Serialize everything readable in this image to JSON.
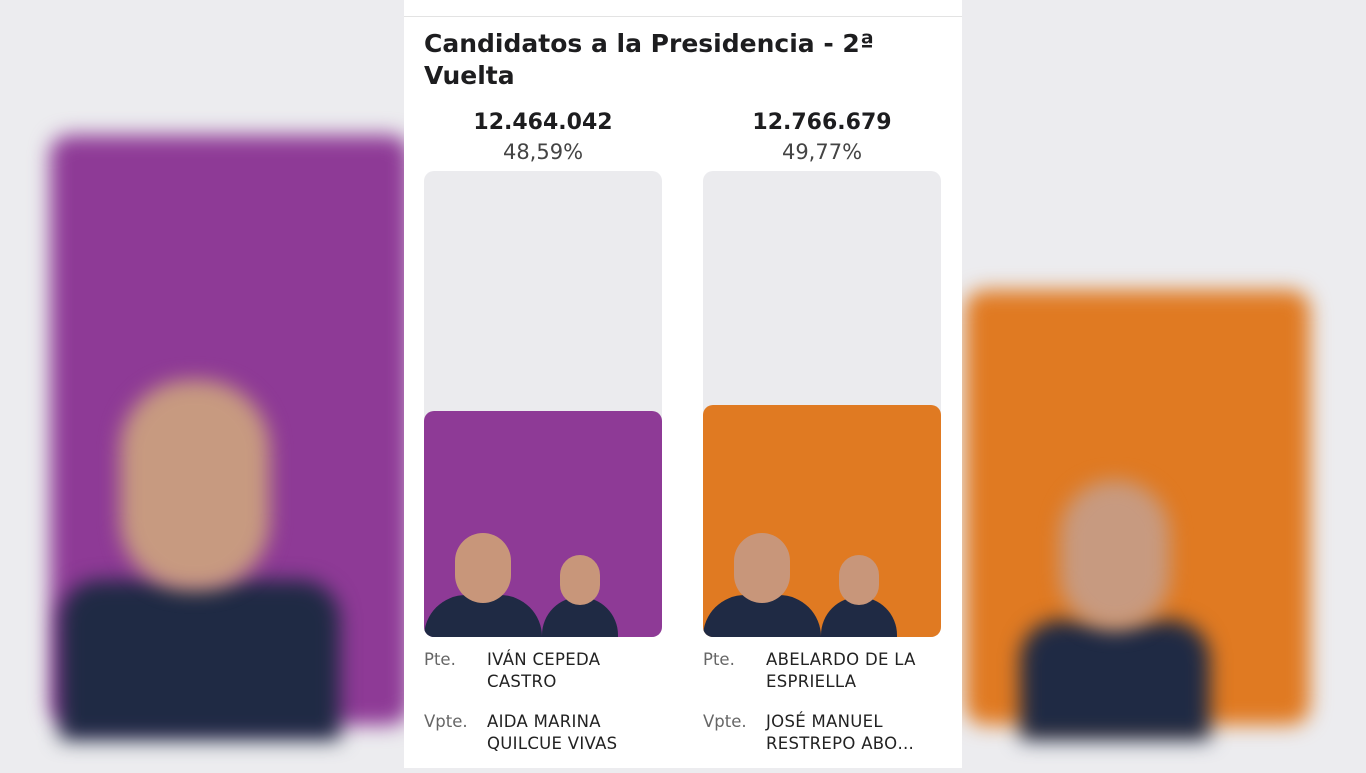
{
  "header": {
    "title": "Candidatos a la Presidencia - 2ª Vuelta"
  },
  "candidates": [
    {
      "votes": "12.464.042",
      "percent": 48.59,
      "percent_label": "48,59%",
      "color": "#8e3a96",
      "president_label": "Pte.",
      "president": "IVÁN CEPEDA CASTRO",
      "vice_label": "Vpte.",
      "vice": "AIDA MARINA QUILCUE VIVAS"
    },
    {
      "votes": "12.766.679",
      "percent": 49.77,
      "percent_label": "49,77%",
      "color": "#e07a22",
      "president_label": "Pte.",
      "president": "ABELARDO DE LA ESPRIELLA",
      "vice_label": "Vpte.",
      "vice": "JOSÉ MANUEL RESTREPO ABO…"
    }
  ]
}
